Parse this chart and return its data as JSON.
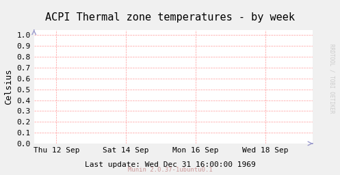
{
  "title": "ACPI Thermal zone temperatures - by week",
  "ylabel": "Celsius",
  "xlabel_bottom": "Last update: Wed Dec 31 16:00:00 1969",
  "footer": "Munin 2.0.37-1ubuntu0.1",
  "right_label": "RRDTOOL / TOBI OETIKER",
  "yticks": [
    0.0,
    0.1,
    0.2,
    0.3,
    0.4,
    0.5,
    0.6,
    0.7,
    0.8,
    0.9,
    1.0
  ],
  "ylim": [
    0.0,
    1.05
  ],
  "xtick_labels": [
    "Thu 12 Sep",
    "Sat 14 Sep",
    "Mon 16 Sep",
    "Wed 18 Sep"
  ],
  "xtick_positions": [
    0.08,
    0.33,
    0.58,
    0.83
  ],
  "bg_color": "#f0f0f0",
  "plot_bg_color": "#ffffff",
  "grid_color": "#ff9999",
  "grid_style": "--",
  "title_fontsize": 11,
  "axis_label_fontsize": 9,
  "tick_fontsize": 8,
  "footer_color": "#cc9999",
  "right_label_color": "#cccccc",
  "arrow_color": "#9999cc",
  "title_font": "monospace",
  "tick_font": "monospace"
}
